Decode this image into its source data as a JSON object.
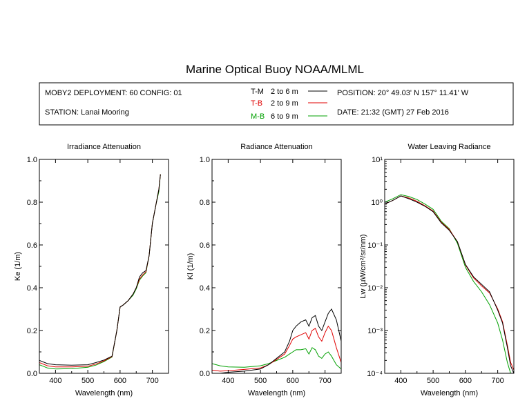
{
  "title": "Marine Optical Buoy NOAA/MLML",
  "info": {
    "deployment": "MOBY2 DEPLOYMENT: 60 CONFIG: 01",
    "station": "STATION: Lanai Mooring",
    "position": "POSITION: 20° 49.03' N   157° 11.41' W",
    "date": "DATE: 21:32 (GMT) 27 Feb 2016",
    "legend": [
      {
        "name": "T-M",
        "range": "2 to 6  m",
        "color": "#000000"
      },
      {
        "name": "T-B",
        "range": "2 to 9  m",
        "color": "#e00000"
      },
      {
        "name": "M-B",
        "range": "6 to 9  m",
        "color": "#00a000"
      }
    ]
  },
  "chart_data": [
    {
      "type": "line",
      "title": "Irradiance Attenuation",
      "xlabel": "Wavelength (nm)",
      "ylabel": "Ke  (1/m)",
      "xlim": [
        350,
        750
      ],
      "ylim": [
        0,
        1
      ],
      "xticks": [
        "400",
        "500",
        "600",
        "700"
      ],
      "yticks": [
        "0.0",
        "0.2",
        "0.4",
        "0.6",
        "0.8",
        "1.0"
      ],
      "x": [
        350,
        375,
        400,
        450,
        500,
        525,
        550,
        575,
        590,
        600,
        610,
        625,
        640,
        650,
        660,
        670,
        680,
        690,
        700,
        710,
        720,
        725
      ],
      "series": [
        {
          "name": "T-M",
          "color": "#000000",
          "values": [
            0.06,
            0.045,
            0.04,
            0.038,
            0.04,
            0.05,
            0.062,
            0.08,
            0.2,
            0.31,
            0.32,
            0.34,
            0.37,
            0.4,
            0.45,
            0.47,
            0.48,
            0.55,
            0.7,
            0.78,
            0.86,
            0.93
          ]
        },
        {
          "name": "T-B",
          "color": "#e00000",
          "values": [
            0.05,
            0.035,
            0.03,
            0.03,
            0.033,
            0.043,
            0.058,
            0.078,
            0.2,
            0.31,
            0.32,
            0.34,
            0.37,
            0.4,
            0.44,
            0.46,
            0.475,
            0.55,
            0.7,
            0.78,
            0.86,
            0.93
          ]
        },
        {
          "name": "M-B",
          "color": "#00a000",
          "values": [
            0.04,
            0.025,
            0.02,
            0.022,
            0.028,
            0.038,
            0.055,
            0.076,
            0.2,
            0.31,
            0.32,
            0.34,
            0.365,
            0.395,
            0.435,
            0.455,
            0.47,
            0.55,
            0.7,
            0.78,
            0.85,
            0.93
          ]
        }
      ]
    },
    {
      "type": "line",
      "title": "Radiance Attenuation",
      "xlabel": "Wavelength (nm)",
      "ylabel": "Kl  (1/m)",
      "xlim": [
        350,
        750
      ],
      "ylim": [
        0,
        1
      ],
      "xticks": [
        "400",
        "500",
        "600",
        "700"
      ],
      "yticks": [
        "0.0",
        "0.2",
        "0.4",
        "0.6",
        "0.8",
        "1.0"
      ],
      "x": [
        350,
        375,
        400,
        450,
        500,
        525,
        550,
        575,
        590,
        600,
        610,
        625,
        640,
        650,
        660,
        670,
        680,
        690,
        700,
        710,
        720,
        735,
        750
      ],
      "series": [
        {
          "name": "T-M",
          "color": "#000000",
          "values": [
            0.0,
            0.0,
            0.005,
            0.01,
            0.02,
            0.04,
            0.07,
            0.1,
            0.15,
            0.2,
            0.22,
            0.24,
            0.25,
            0.22,
            0.26,
            0.27,
            0.22,
            0.2,
            0.24,
            0.28,
            0.3,
            0.25,
            0.15
          ]
        },
        {
          "name": "T-B",
          "color": "#e00000",
          "values": [
            0.015,
            0.01,
            0.012,
            0.018,
            0.025,
            0.04,
            0.065,
            0.09,
            0.13,
            0.16,
            0.17,
            0.18,
            0.19,
            0.16,
            0.2,
            0.21,
            0.17,
            0.15,
            0.19,
            0.22,
            0.2,
            0.12,
            0.05
          ]
        },
        {
          "name": "M-B",
          "color": "#00a000",
          "values": [
            0.045,
            0.035,
            0.03,
            0.028,
            0.035,
            0.045,
            0.06,
            0.075,
            0.09,
            0.1,
            0.11,
            0.11,
            0.115,
            0.09,
            0.12,
            0.11,
            0.08,
            0.07,
            0.09,
            0.1,
            0.08,
            0.04,
            0.02
          ]
        }
      ]
    },
    {
      "type": "line",
      "title": "Water Leaving Radiance",
      "xlabel": "Wavelength (nm)",
      "ylabel": "Lw  (µW/cm²/sr/nm)",
      "xlim": [
        350,
        750
      ],
      "ylim": [
        0.0001,
        10
      ],
      "yscale": "log",
      "xticks": [
        "400",
        "500",
        "600",
        "700"
      ],
      "yticks": [
        "10¹",
        "10⁰",
        "10⁻¹",
        "10⁻²",
        "10⁻³",
        "10⁻⁴"
      ],
      "x": [
        350,
        375,
        400,
        425,
        450,
        475,
        500,
        525,
        550,
        575,
        600,
        625,
        650,
        675,
        700,
        715,
        730,
        740,
        750
      ],
      "series": [
        {
          "name": "T-M",
          "color": "#000000",
          "values": [
            0.9,
            1.1,
            1.4,
            1.2,
            1.0,
            0.8,
            0.6,
            0.33,
            0.22,
            0.12,
            0.035,
            0.018,
            0.012,
            0.008,
            0.003,
            0.0015,
            0.0004,
            0.00015,
            0.0001
          ]
        },
        {
          "name": "T-B",
          "color": "#e00000",
          "values": [
            0.9,
            1.1,
            1.4,
            1.25,
            1.05,
            0.82,
            0.62,
            0.34,
            0.23,
            0.12,
            0.034,
            0.017,
            0.011,
            0.0075,
            0.0032,
            0.0016,
            0.00045,
            0.00018,
            0.00012
          ]
        },
        {
          "name": "M-B",
          "color": "#00a000",
          "values": [
            1.0,
            1.2,
            1.5,
            1.35,
            1.15,
            0.9,
            0.68,
            0.36,
            0.24,
            0.11,
            0.03,
            0.014,
            0.008,
            0.004,
            0.0015,
            0.0006,
            0.00018,
            0.0001,
            0.0001
          ]
        }
      ]
    }
  ]
}
